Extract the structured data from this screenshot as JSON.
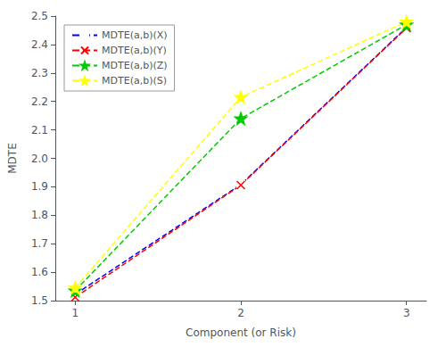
{
  "chart_data": {
    "type": "line",
    "xlabel": "Component (or Risk)",
    "ylabel": "MDTE",
    "x": [
      1,
      2,
      3
    ],
    "series": [
      {
        "name": "MDTE(a,b)(X)",
        "color": "#0000FF",
        "values": [
          1.522,
          1.908,
          2.46
        ],
        "marker": "square",
        "line_style": "dashed"
      },
      {
        "name": "MDTE(a,b)(Y)",
        "color": "#FF0000",
        "values": [
          1.512,
          1.906,
          2.458
        ],
        "marker": "x",
        "line_style": "dashed"
      },
      {
        "name": "MDTE(a,b)(Z)",
        "color": "#00CC00",
        "values": [
          1.535,
          2.14,
          2.47
        ],
        "marker": "star",
        "line_style": "dashed"
      },
      {
        "name": "MDTE(a,b)(S)",
        "color": "#FFFF00",
        "values": [
          1.545,
          2.215,
          2.48
        ],
        "marker": "star",
        "line_style": "dashed"
      }
    ],
    "xlim": [
      0.88,
      3.12
    ],
    "ylim": [
      1.5,
      2.5
    ],
    "xticks": [
      1,
      2,
      3
    ],
    "yticks": [
      1.5,
      1.6,
      1.7,
      1.8,
      1.9,
      {
        "value": 2.0,
        "label": "2.0"
      },
      2.1,
      2.2,
      2.3,
      2.4,
      2.5
    ],
    "grid": false,
    "legend": "upper left"
  }
}
